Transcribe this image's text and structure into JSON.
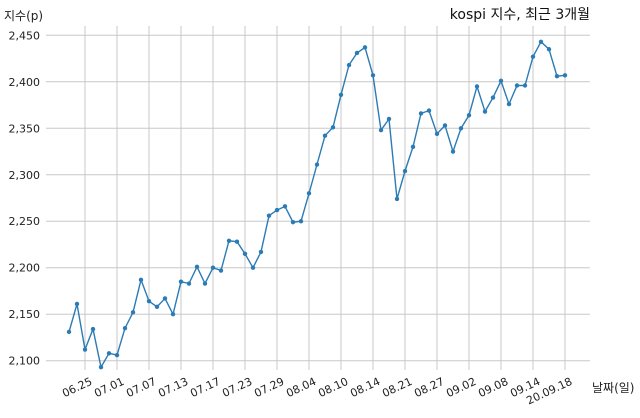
{
  "chart_data": {
    "type": "line",
    "title": "kospi 지수, 최근 3개월",
    "ylabel": "지수(p)",
    "xlabel": "날짜(일)",
    "ylim": [
      2090,
      2460
    ],
    "yticks": [
      2100,
      2150,
      2200,
      2250,
      2300,
      2350,
      2400,
      2450
    ],
    "ytick_labels": [
      "2,100",
      "2,150",
      "2,200",
      "2,250",
      "2,300",
      "2,350",
      "2,400",
      "2,450"
    ],
    "xticks": [
      {
        "index": 2,
        "label": "06.25"
      },
      {
        "index": 6,
        "label": "07.01"
      },
      {
        "index": 10,
        "label": "07.07"
      },
      {
        "index": 14,
        "label": "07.13"
      },
      {
        "index": 18,
        "label": "07.17"
      },
      {
        "index": 22,
        "label": "07.23"
      },
      {
        "index": 26,
        "label": "07.29"
      },
      {
        "index": 30,
        "label": "08.04"
      },
      {
        "index": 34,
        "label": "08.10"
      },
      {
        "index": 38,
        "label": "08.14"
      },
      {
        "index": 42,
        "label": "08.21"
      },
      {
        "index": 46,
        "label": "08.27"
      },
      {
        "index": 50,
        "label": "09.02"
      },
      {
        "index": 54,
        "label": "09.08"
      },
      {
        "index": 58,
        "label": "09.14"
      },
      {
        "index": 62,
        "label": "20.09.18"
      }
    ],
    "grid": true,
    "series": [
      {
        "color": "#2b7bb5",
        "values": [
          2131,
          2161,
          2112,
          2134,
          2093,
          2108,
          2106,
          2135,
          2152,
          2187,
          2164,
          2158,
          2167,
          2150,
          2185,
          2183,
          2201,
          2183,
          2200,
          2197,
          2229,
          2228,
          2215,
          2200,
          2217,
          2256,
          2262,
          2266,
          2249,
          2250,
          2280,
          2311,
          2342,
          2351,
          2386,
          2418,
          2431,
          2437,
          2407,
          2348,
          2360,
          2274,
          2304,
          2330,
          2366,
          2369,
          2344,
          2353,
          2325,
          2350,
          2364,
          2395,
          2368,
          2383,
          2401,
          2376,
          2396,
          2396,
          2427,
          2443,
          2435,
          2406,
          2407
        ]
      }
    ]
  }
}
